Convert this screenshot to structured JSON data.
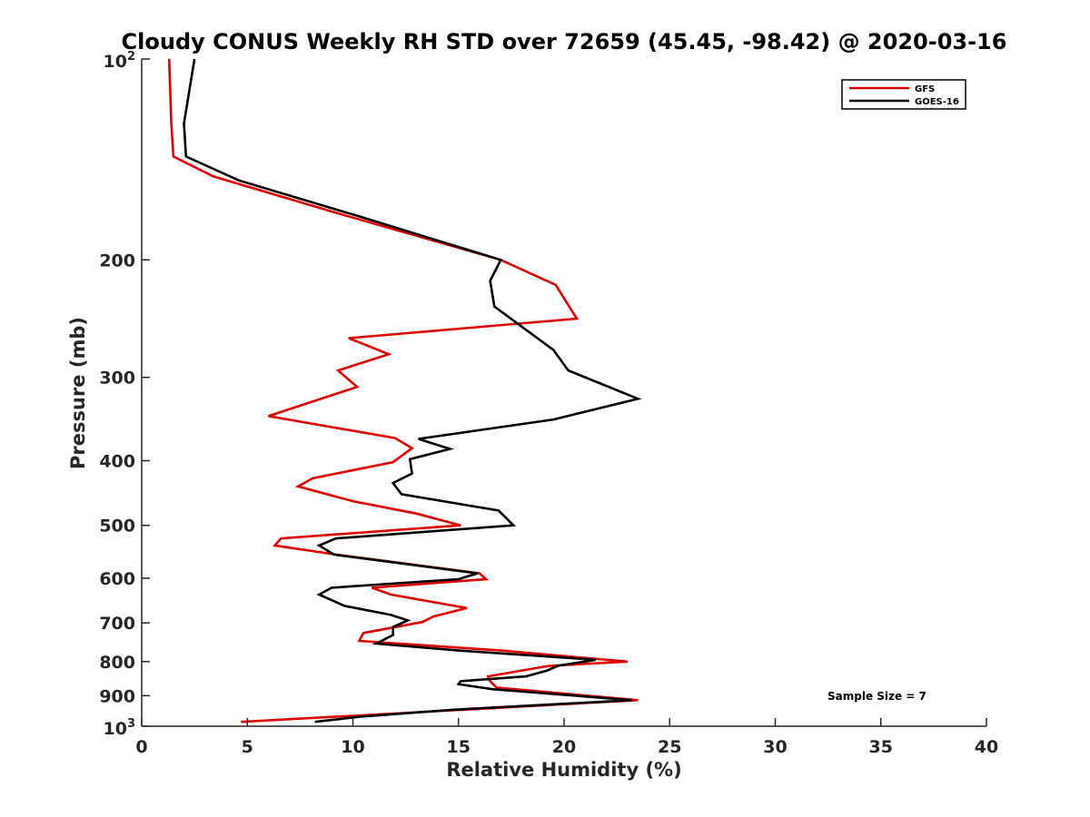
{
  "chart_data": {
    "type": "line",
    "title": "Cloudy CONUS Weekly RH STD over 72659 (45.45, -98.42) @ 2020-03-16",
    "xlabel": "Relative Humidity (%)",
    "ylabel": "Pressure (mb)",
    "xlim": [
      0,
      40
    ],
    "ylim": [
      100,
      1000
    ],
    "y_scale": "log",
    "y_reversed": true,
    "grid": false,
    "legend_position": "top-right",
    "x_ticks": [
      0,
      5,
      10,
      15,
      20,
      25,
      30,
      35,
      40
    ],
    "y_ticks": [
      {
        "value": 100,
        "base": "10",
        "exp": "2"
      },
      {
        "value": 200,
        "label": "200"
      },
      {
        "value": 300,
        "label": "300"
      },
      {
        "value": 400,
        "label": "400"
      },
      {
        "value": 500,
        "label": "500"
      },
      {
        "value": 600,
        "label": "600"
      },
      {
        "value": 700,
        "label": "700"
      },
      {
        "value": 800,
        "label": "800"
      },
      {
        "value": 900,
        "label": "900"
      },
      {
        "value": 1000,
        "base": "10",
        "exp": "3"
      }
    ],
    "annotation": "Sample Size = 7",
    "series": [
      {
        "name": "GFS",
        "color": "#e00000",
        "points": [
          [
            1.3,
            100
          ],
          [
            1.4,
            125
          ],
          [
            1.5,
            140
          ],
          [
            3.4,
            150
          ],
          [
            9.2,
            170
          ],
          [
            17.0,
            200
          ],
          [
            19.6,
            218
          ],
          [
            20.6,
            245
          ],
          [
            9.8,
            262
          ],
          [
            11.7,
            277
          ],
          [
            9.3,
            293
          ],
          [
            10.2,
            310
          ],
          [
            6.0,
            343
          ],
          [
            12.0,
            370
          ],
          [
            12.8,
            383
          ],
          [
            11.9,
            402
          ],
          [
            8.1,
            425
          ],
          [
            7.4,
            437
          ],
          [
            10.0,
            460
          ],
          [
            13.0,
            480
          ],
          [
            15.1,
            500
          ],
          [
            6.6,
            523
          ],
          [
            6.3,
            536
          ],
          [
            9.2,
            553
          ],
          [
            16.0,
            590
          ],
          [
            16.3,
            602
          ],
          [
            10.9,
            620
          ],
          [
            11.8,
            635
          ],
          [
            15.4,
            665
          ],
          [
            13.8,
            685
          ],
          [
            13.3,
            698
          ],
          [
            10.5,
            725
          ],
          [
            10.3,
            745
          ],
          [
            17.0,
            770
          ],
          [
            23.0,
            800
          ],
          [
            19.3,
            812
          ],
          [
            18.0,
            825
          ],
          [
            16.4,
            842
          ],
          [
            16.5,
            856
          ],
          [
            16.8,
            875
          ],
          [
            23.5,
            914
          ],
          [
            4.7,
            985
          ]
        ]
      },
      {
        "name": "GOES-16",
        "color": "#000000",
        "points": [
          [
            2.5,
            100
          ],
          [
            2.0,
            125
          ],
          [
            2.1,
            140
          ],
          [
            4.6,
            152
          ],
          [
            10.0,
            171
          ],
          [
            17.0,
            200
          ],
          [
            16.5,
            215
          ],
          [
            16.7,
            235
          ],
          [
            19.5,
            273
          ],
          [
            20.2,
            293
          ],
          [
            23.5,
            323
          ],
          [
            19.5,
            347
          ],
          [
            13.1,
            371
          ],
          [
            14.6,
            384
          ],
          [
            12.7,
            398
          ],
          [
            12.8,
            418
          ],
          [
            11.9,
            432
          ],
          [
            12.3,
            449
          ],
          [
            16.9,
            475
          ],
          [
            17.6,
            500
          ],
          [
            9.2,
            523
          ],
          [
            8.4,
            536
          ],
          [
            9.1,
            553
          ],
          [
            15.9,
            590
          ],
          [
            15.0,
            602
          ],
          [
            9.0,
            620
          ],
          [
            8.4,
            635
          ],
          [
            9.6,
            660
          ],
          [
            11.8,
            681
          ],
          [
            12.6,
            694
          ],
          [
            11.9,
            710
          ],
          [
            11.9,
            730
          ],
          [
            11.1,
            752
          ],
          [
            15.0,
            770
          ],
          [
            21.5,
            795
          ],
          [
            19.7,
            812
          ],
          [
            19.2,
            825
          ],
          [
            18.2,
            842
          ],
          [
            15.1,
            856
          ],
          [
            15.0,
            865
          ],
          [
            16.6,
            880
          ],
          [
            23.2,
            914
          ],
          [
            14.7,
            945
          ],
          [
            10.3,
            968
          ],
          [
            8.2,
            985
          ]
        ]
      }
    ]
  }
}
